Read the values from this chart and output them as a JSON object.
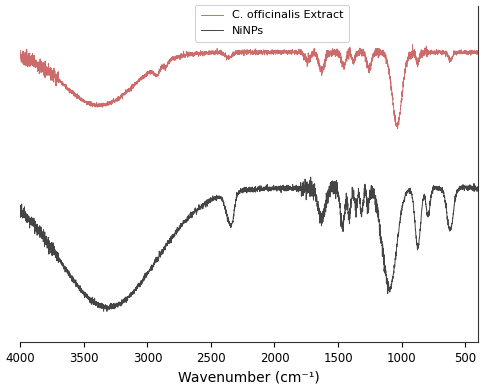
{
  "title": "",
  "xlabel": "Wavenumber (cm⁻¹)",
  "xlim_left": 4000,
  "xlim_right": 400,
  "legend_labels": [
    "C. officinalis Extract",
    "NiNPs"
  ],
  "red_color": "#cd6b6b",
  "gray_color": "#444444",
  "xticks": [
    4000,
    3500,
    3000,
    2500,
    2000,
    1500,
    1000,
    500
  ],
  "background": "#ffffff",
  "red_baseline": 0.72,
  "gray_baseline": -0.25
}
